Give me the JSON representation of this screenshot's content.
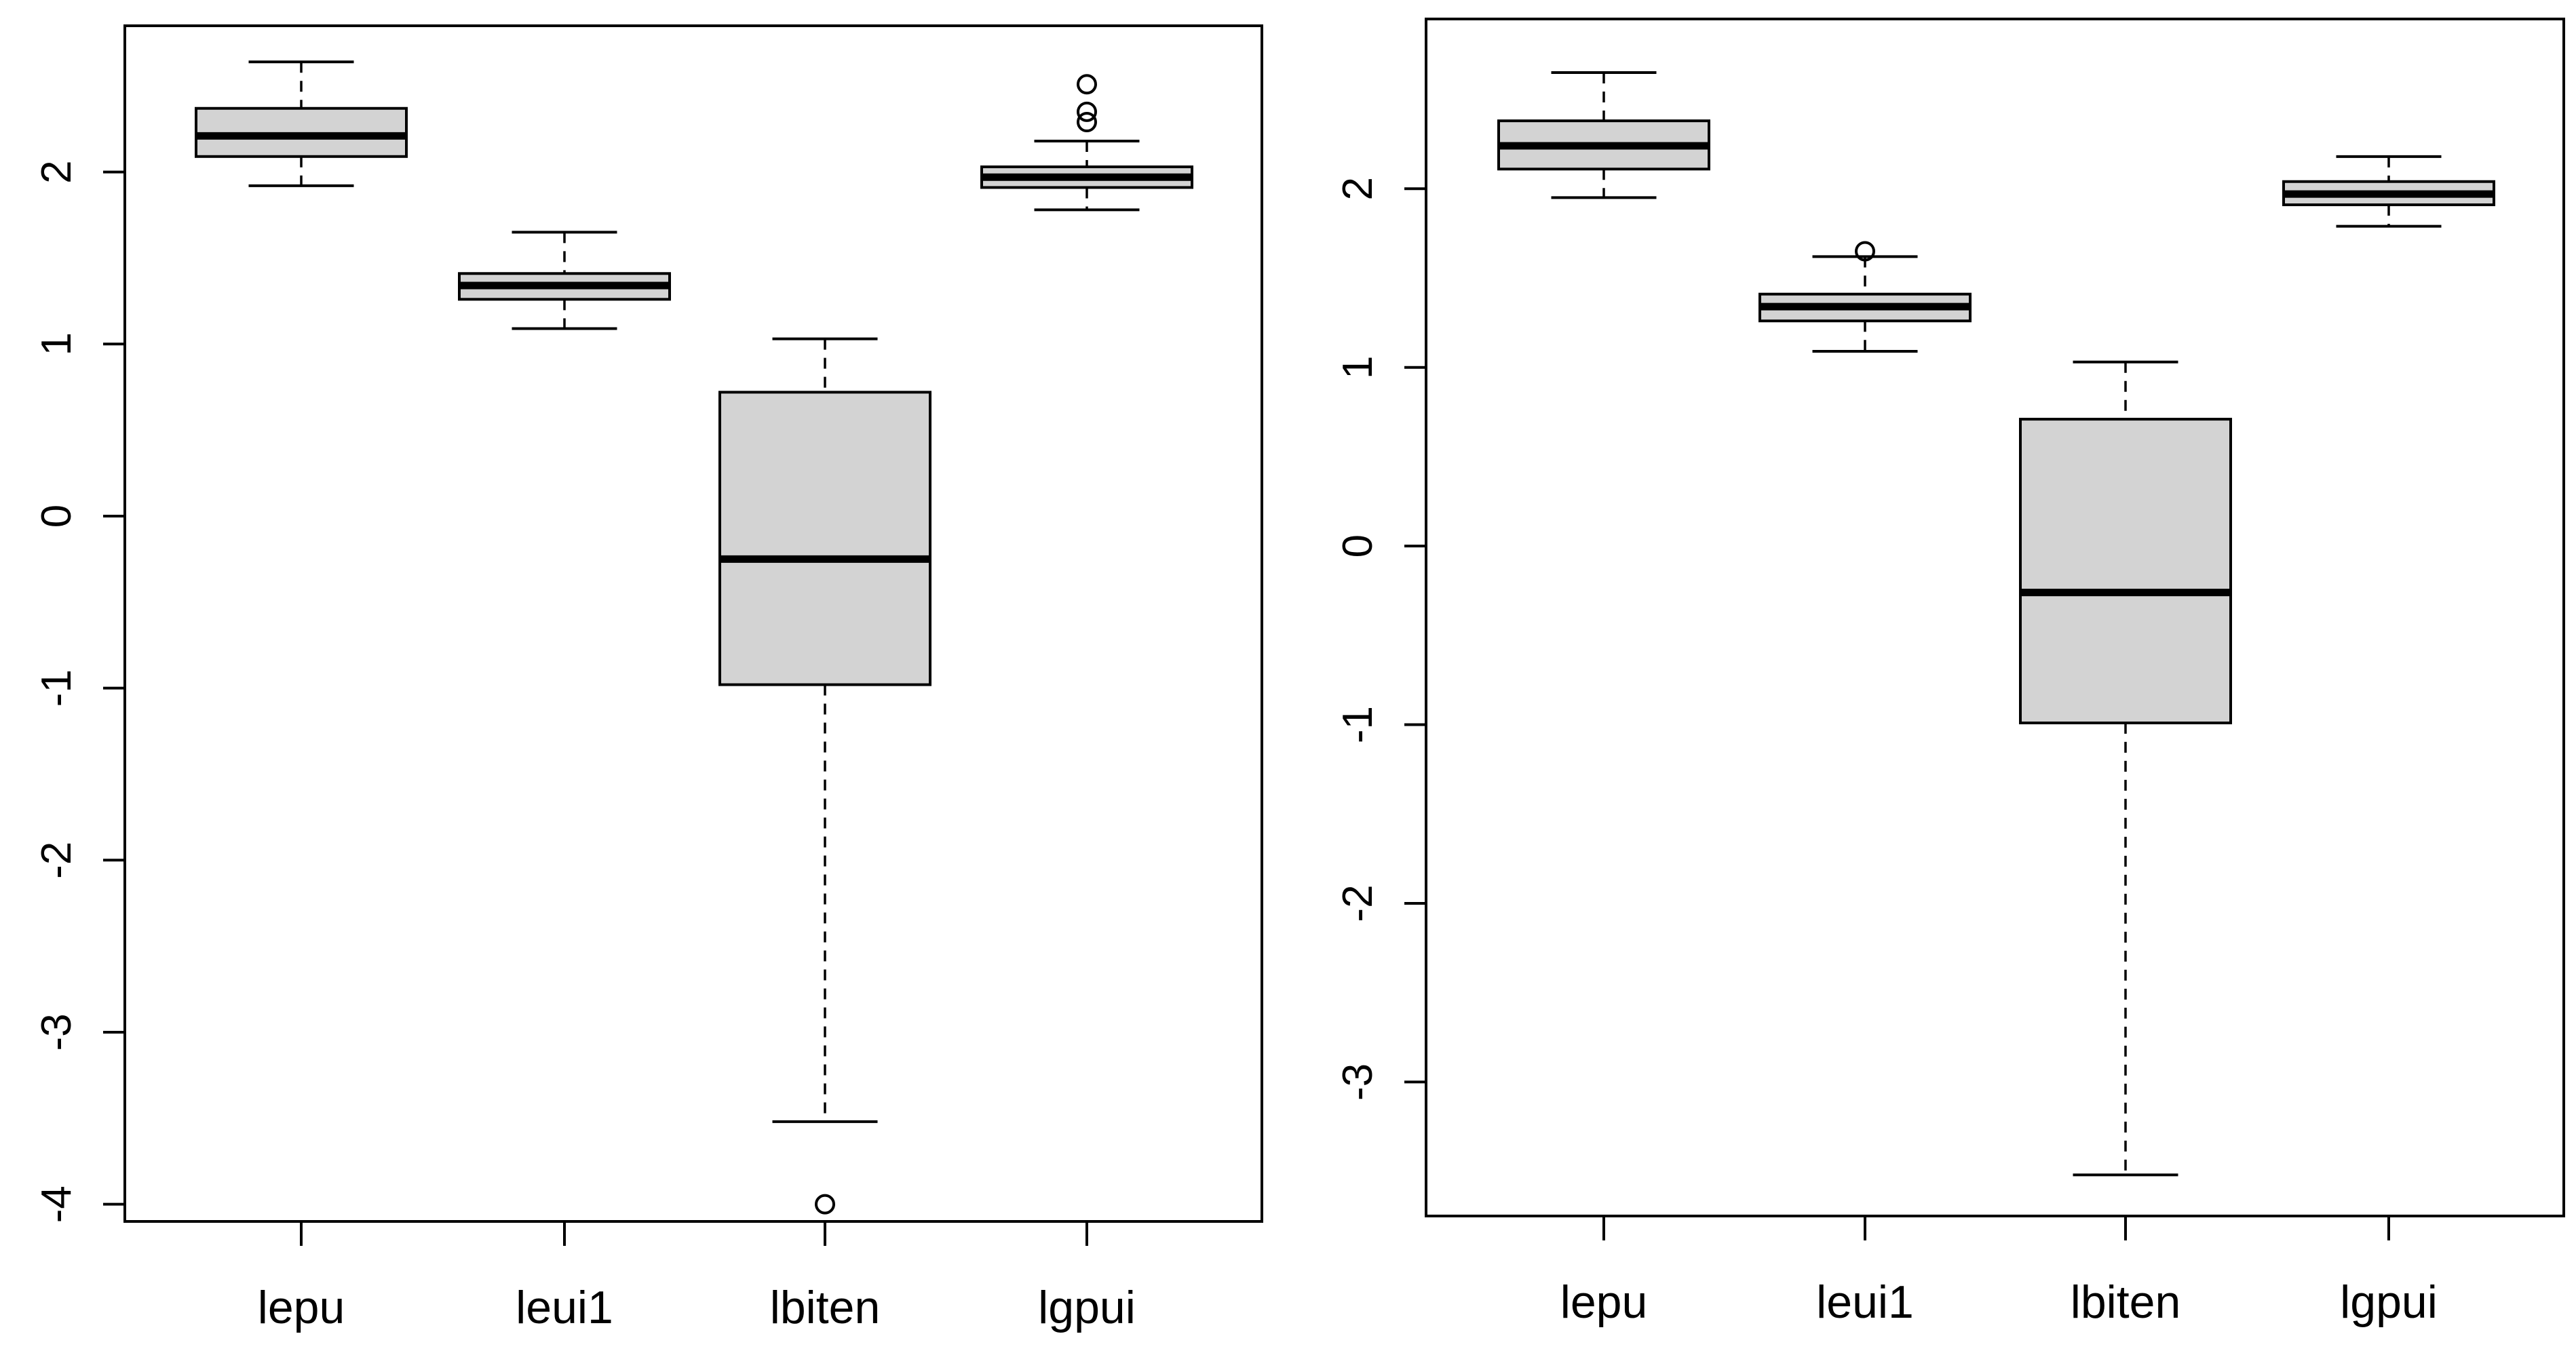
{
  "chart_data": [
    {
      "type": "boxplot",
      "title": "",
      "xlabel": "",
      "ylabel": "",
      "ylim": [
        -4.1,
        2.85
      ],
      "yticks": [
        -4,
        -3,
        -2,
        -1,
        0,
        1,
        2
      ],
      "ytick_labels": [
        "-4",
        "-3",
        "-2",
        "-1",
        "0",
        "1",
        "2"
      ],
      "categories": [
        "lepu",
        "leui1",
        "lbiten",
        "lgpui"
      ],
      "box_color": "#d3d3d3",
      "series": [
        {
          "category": "lepu",
          "whisker_low": 1.92,
          "q1": 2.09,
          "median": 2.21,
          "q3": 2.37,
          "whisker_high": 2.64,
          "outliers": []
        },
        {
          "category": "leui1",
          "whisker_low": 1.09,
          "q1": 1.26,
          "median": 1.34,
          "q3": 1.41,
          "whisker_high": 1.65,
          "outliers": []
        },
        {
          "category": "lbiten",
          "whisker_low": -3.52,
          "q1": -0.98,
          "median": -0.25,
          "q3": 0.72,
          "whisker_high": 1.03,
          "outliers": [
            -4.0
          ]
        },
        {
          "category": "lgpui",
          "whisker_low": 1.78,
          "q1": 1.91,
          "median": 1.97,
          "q3": 2.03,
          "whisker_high": 2.18,
          "outliers": [
            2.29,
            2.35,
            2.51
          ]
        }
      ]
    },
    {
      "type": "boxplot",
      "title": "",
      "xlabel": "",
      "ylabel": "",
      "ylim": [
        -3.75,
        2.95
      ],
      "yticks": [
        -3,
        -2,
        -1,
        0,
        1,
        2
      ],
      "ytick_labels": [
        "-3",
        "-2",
        "-1",
        "0",
        "1",
        "2"
      ],
      "categories": [
        "lepu",
        "leui1",
        "lbiten",
        "lgpui"
      ],
      "box_color": "#d3d3d3",
      "series": [
        {
          "category": "lepu",
          "whisker_low": 1.95,
          "q1": 2.11,
          "median": 2.24,
          "q3": 2.38,
          "whisker_high": 2.65,
          "outliers": []
        },
        {
          "category": "leui1",
          "whisker_low": 1.09,
          "q1": 1.26,
          "median": 1.34,
          "q3": 1.41,
          "whisker_high": 1.62,
          "outliers": [
            1.65
          ]
        },
        {
          "category": "lbiten",
          "whisker_low": -3.52,
          "q1": -0.99,
          "median": -0.26,
          "q3": 0.71,
          "whisker_high": 1.03,
          "outliers": []
        },
        {
          "category": "lgpui",
          "whisker_low": 1.79,
          "q1": 1.91,
          "median": 1.97,
          "q3": 2.04,
          "whisker_high": 2.18,
          "outliers": []
        }
      ]
    }
  ]
}
